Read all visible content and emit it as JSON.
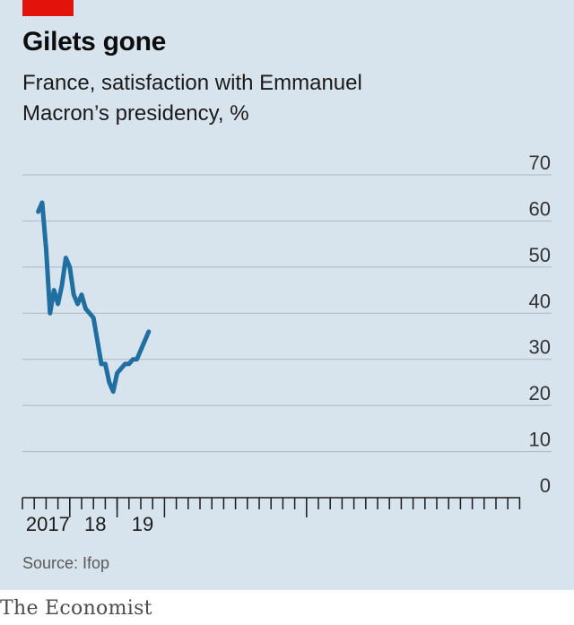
{
  "header": {
    "title": "Gilets gone",
    "subtitle_line1": "France, satisfaction with Emmanuel",
    "subtitle_line2": "Macron’s presidency, %"
  },
  "footer": {
    "source": "Source: Ifop",
    "brand": "The Economist"
  },
  "colors": {
    "accent_red": "#e3120b",
    "line": "#1f6fa1",
    "background": "#d8e4ed"
  },
  "chart_data": {
    "type": "line",
    "title": "Gilets gone",
    "subtitle": "France, satisfaction with Emmanuel Macron’s presidency, %",
    "ylabel": "",
    "xlabel": "",
    "ylim": [
      0,
      70
    ],
    "yticks": [
      0,
      10,
      20,
      30,
      40,
      50,
      60,
      70
    ],
    "xticklabels": [
      {
        "label": "2017",
        "month": "2017-07"
      },
      {
        "label": "18",
        "month": "2018-07"
      },
      {
        "label": "19",
        "month": "2019-07"
      }
    ],
    "grid": true,
    "series": [
      {
        "name": "",
        "x": [
          "2017-05",
          "2017-06",
          "2017-07",
          "2017-08",
          "2017-09",
          "2017-10",
          "2017-11",
          "2017-12",
          "2018-01",
          "2018-02",
          "2018-03",
          "2018-04",
          "2018-05",
          "2018-06",
          "2018-07",
          "2018-08",
          "2018-09",
          "2018-10",
          "2018-11",
          "2018-12",
          "2019-01",
          "2019-02",
          "2019-03",
          "2019-04",
          "2019-05",
          "2019-06",
          "2019-07",
          "2019-08",
          "2019-09"
        ],
        "values": [
          62,
          64,
          54,
          40,
          45,
          42,
          46,
          52,
          50,
          44,
          42,
          44,
          41,
          40,
          39,
          34,
          29,
          29,
          25,
          23,
          27,
          28,
          29,
          29,
          30,
          30,
          32,
          34,
          36
        ]
      }
    ]
  }
}
